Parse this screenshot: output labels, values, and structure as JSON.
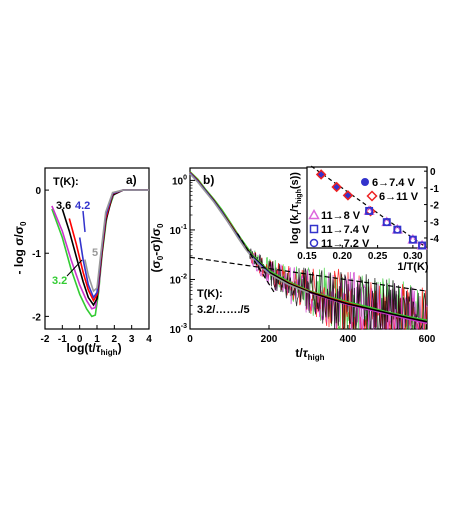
{
  "chart_data": [
    {
      "type": "line",
      "panel_label": "a)",
      "xlabel_parts": [
        "log(t/",
        "τ",
        "high",
        ")"
      ],
      "ylabel": "- log σ/σ0",
      "ylabel_parts": [
        "- log σ/σ",
        "0"
      ],
      "xlim": [
        -2,
        4
      ],
      "ylim": [
        -2.2,
        0.35
      ],
      "x_ticks": [
        -2,
        -1,
        0,
        1,
        2,
        3,
        4
      ],
      "y_ticks": [
        0,
        -1,
        -2
      ],
      "legend_title": "T(K):",
      "annotations": [
        {
          "text": "3.6",
          "color": "#000000"
        },
        {
          "text": "4.2",
          "color": "#3333cc"
        },
        {
          "text": "5",
          "color": "#999999"
        },
        {
          "text": "3.2",
          "color": "#33cc33"
        }
      ],
      "series": [
        {
          "color": "#33cc33",
          "x": [
            -1.6,
            -1.0,
            -0.5,
            0.0,
            0.4,
            0.7,
            0.9,
            1.1,
            1.3,
            1.6,
            2.0,
            2.5,
            3.0,
            4.0
          ],
          "y": [
            -0.3,
            -0.75,
            -1.25,
            -1.65,
            -1.88,
            -2.0,
            -1.98,
            -1.6,
            -1.0,
            -0.35,
            -0.05,
            0.0,
            0.0,
            0.0
          ]
        },
        {
          "color": "#cc33cc",
          "x": [
            -1.6,
            -1.0,
            -0.5,
            0.0,
            0.4,
            0.7,
            0.9,
            1.1,
            1.3,
            1.6,
            2.0,
            2.5,
            3.0,
            4.0
          ],
          "y": [
            -0.25,
            -0.65,
            -1.1,
            -1.5,
            -1.75,
            -1.88,
            -1.86,
            -1.55,
            -0.95,
            -0.3,
            -0.04,
            0.0,
            0.0,
            0.0
          ]
        },
        {
          "color": "#000000",
          "x": [
            -1.0,
            -0.6,
            -0.2,
            0.2,
            0.5,
            0.8,
            1.0,
            1.2,
            1.5,
            1.9,
            2.5,
            3.0,
            4.0
          ],
          "y": [
            -0.3,
            -0.65,
            -1.05,
            -1.45,
            -1.7,
            -1.82,
            -1.72,
            -1.2,
            -0.5,
            -0.08,
            0.0,
            0.0,
            0.0
          ]
        },
        {
          "color": "#ff0000",
          "x": [
            -0.6,
            -0.2,
            0.2,
            0.5,
            0.8,
            1.0,
            1.2,
            1.5,
            1.9,
            2.5,
            3.0,
            4.0
          ],
          "y": [
            -0.45,
            -0.85,
            -1.3,
            -1.58,
            -1.75,
            -1.66,
            -1.15,
            -0.45,
            -0.06,
            0.0,
            0.0,
            0.0
          ]
        },
        {
          "color": "#3333cc",
          "x": [
            0.0,
            0.2,
            0.5,
            0.8,
            1.0,
            1.2,
            1.5,
            1.9,
            2.5,
            3.0,
            4.0
          ],
          "y": [
            -0.75,
            -1.1,
            -1.5,
            -1.7,
            -1.62,
            -1.1,
            -0.4,
            -0.05,
            0.0,
            0.0,
            0.0
          ]
        },
        {
          "color": "#999999",
          "x": [
            0.3,
            0.5,
            0.8,
            1.0,
            1.2,
            1.5,
            1.9,
            2.5,
            3.0,
            4.0
          ],
          "y": [
            -1.1,
            -1.35,
            -1.6,
            -1.55,
            -1.05,
            -0.35,
            -0.04,
            0.0,
            0.0,
            0.0
          ]
        }
      ]
    },
    {
      "type": "line",
      "panel_label": "b)",
      "xlabel_parts": [
        "t/",
        "τ",
        "high"
      ],
      "ylabel": "(σ0-σ)/σ0",
      "ylabel_parts": [
        "(σ",
        "0",
        "-σ)/σ",
        "0"
      ],
      "xlim": [
        0,
        600
      ],
      "ylim_log10": [
        -3,
        0.25
      ],
      "y_scale": "log",
      "x_ticks": [
        0,
        200,
        400,
        600
      ],
      "y_tick_labels": [
        {
          "mantissa": "10",
          "exponent": "0",
          "value": 0
        },
        {
          "mantissa": "10",
          "exponent": "-1",
          "value": -1
        },
        {
          "mantissa": "10",
          "exponent": "-2",
          "value": -2
        },
        {
          "mantissa": "10",
          "exponent": "-3",
          "value": -3
        }
      ],
      "annotation_lines": [
        "T(K):",
        "3.2/……./5"
      ],
      "series": [
        {
          "color": "#33cc33",
          "x": [
            0,
            20,
            40,
            60,
            80,
            100,
            120,
            140,
            160,
            180,
            200,
            250,
            300,
            350,
            400,
            450,
            500,
            550,
            600
          ],
          "y": [
            1.5,
            1.05,
            0.65,
            0.42,
            0.26,
            0.15,
            0.085,
            0.05,
            0.03,
            0.021,
            0.015,
            0.009,
            0.006,
            0.0045,
            0.0035,
            0.0028,
            0.0022,
            0.0018,
            0.0015
          ]
        },
        {
          "color": "#ff0000",
          "x": [
            0,
            20,
            40,
            60,
            80,
            100,
            120,
            140,
            160,
            180,
            200,
            250,
            300,
            350,
            400,
            450,
            500,
            550,
            600
          ],
          "y": [
            1.45,
            1.0,
            0.62,
            0.4,
            0.24,
            0.14,
            0.08,
            0.046,
            0.028,
            0.02,
            0.014,
            0.0085,
            0.0058,
            0.0043,
            0.0033,
            0.0026,
            0.0021,
            0.0017,
            0.0014
          ]
        },
        {
          "color": "#cc33cc",
          "x": [
            0,
            20,
            40,
            60,
            80,
            100,
            120,
            140,
            160,
            180,
            200,
            250,
            300,
            350,
            400,
            450,
            500,
            550,
            600
          ],
          "y": [
            1.4,
            0.95,
            0.6,
            0.38,
            0.23,
            0.13,
            0.075,
            0.043,
            0.027,
            0.019,
            0.0135,
            0.008,
            0.0055,
            0.0041,
            0.0031,
            0.0025,
            0.002,
            0.0016,
            0.0013
          ]
        },
        {
          "color": "#000000",
          "x": [
            0,
            20,
            40,
            60,
            80,
            100,
            120,
            140,
            160,
            180,
            200,
            250,
            300,
            350,
            400,
            450,
            500,
            550,
            600
          ],
          "y": [
            1.4,
            0.97,
            0.61,
            0.39,
            0.235,
            0.135,
            0.078,
            0.045,
            0.028,
            0.02,
            0.014,
            0.0083,
            0.0057,
            0.0042,
            0.0032,
            0.0026,
            0.0021,
            0.0017,
            0.0014
          ]
        },
        {
          "color": "#3333cc",
          "x": [
            0,
            20,
            40,
            60,
            80,
            100,
            120,
            140,
            160,
            180,
            200
          ],
          "y": [
            1.4,
            0.95,
            0.6,
            0.38,
            0.23,
            0.13,
            0.075,
            0.043,
            0.027,
            0.019,
            0.0135
          ]
        },
        {
          "color": "#999999",
          "x": [
            0,
            20,
            40,
            60,
            80,
            100,
            120,
            140,
            160,
            180,
            200,
            250,
            300
          ],
          "y": [
            1.35,
            0.92,
            0.58,
            0.37,
            0.22,
            0.13,
            0.072,
            0.042,
            0.026,
            0.018,
            0.013,
            0.0078,
            0.0054
          ]
        }
      ],
      "fit_lines": [
        {
          "style": "dashed",
          "x": [
            0,
            600
          ],
          "y": [
            0.028,
            0.0058
          ]
        },
        {
          "style": "dashed",
          "x": [
            120,
            215
          ],
          "y": [
            0.085,
            0.0052
          ]
        }
      ]
    },
    {
      "type": "scatter",
      "inset": true,
      "xlabel": "1/T(K)",
      "ylabel_parts": [
        "log (k",
        "r",
        "/τ",
        "high",
        "(s))"
      ],
      "xlim": [
        0.15,
        0.32
      ],
      "ylim": [
        -4.6,
        0.25
      ],
      "x_ticks": [
        0.15,
        0.2,
        0.25,
        0.3
      ],
      "x_tick_labels": [
        "0.15",
        "0.20",
        "0.25",
        "0.30"
      ],
      "y_ticks": [
        0,
        -1,
        -2,
        -3,
        -4
      ],
      "fit_line": {
        "x": [
          0.156,
          0.32
        ],
        "y": [
          0.3,
          -4.6
        ]
      },
      "series": [
        {
          "name": "6→7.4 V",
          "marker": "circle-filled",
          "color": "#3333cc",
          "x": [
            0.17,
            0.192,
            0.208
          ],
          "y": [
            -0.2,
            -0.95,
            -1.45
          ]
        },
        {
          "name": "6→11 V",
          "marker": "diamond",
          "color": "#ee2222",
          "x": [
            0.17,
            0.192,
            0.208,
            0.24
          ],
          "y": [
            -0.2,
            -0.95,
            -1.45,
            -2.4
          ]
        },
        {
          "name": "11→8 V",
          "marker": "triangle",
          "color": "#dd66dd",
          "x": [
            0.238,
            0.263,
            0.278,
            0.3,
            0.313
          ],
          "y": [
            -2.38,
            -3.05,
            -3.5,
            -4.1,
            -4.45
          ]
        },
        {
          "name": "11→7.4 V",
          "marker": "square",
          "color": "#3333cc",
          "x": [
            0.238,
            0.263,
            0.278,
            0.3,
            0.313
          ],
          "y": [
            -2.38,
            -3.05,
            -3.5,
            -4.1,
            -4.45
          ]
        },
        {
          "name": "11→7.2 V",
          "marker": "circle",
          "color": "#3333cc",
          "x": [
            0.238,
            0.263,
            0.278,
            0.3,
            0.313
          ],
          "y": [
            -2.38,
            -3.05,
            -3.5,
            -4.1,
            -4.45
          ]
        }
      ]
    }
  ]
}
